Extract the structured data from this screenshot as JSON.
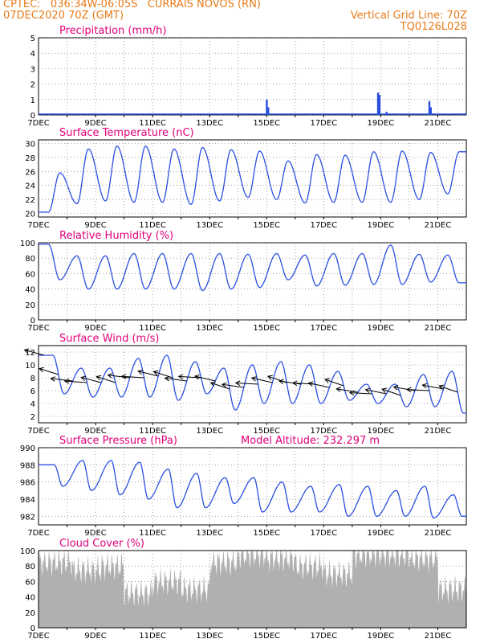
{
  "header": {
    "line1": "CPTEC:   036:34W-06:05S   CURRAIS NOVOS (RN)",
    "line2": "07DEC2020 70Z (GMT)",
    "right1": "Vertical Grid Line: 70Z",
    "right2": "TQ0126L028",
    "color": "#e87b1a"
  },
  "colors": {
    "title": "#e0007a",
    "series": "#2a4fe0",
    "cloud": "#b0b0b0",
    "grid": "#666666"
  },
  "x_ticks": [
    "7DEC",
    "9DEC",
    "11DEC",
    "13DEC",
    "15DEC",
    "17DEC",
    "19DEC",
    "21DEC"
  ],
  "panels": [
    {
      "id": "precip",
      "title": "Precipitation (mm/h)",
      "type": "bar",
      "ylim": [
        0,
        5
      ],
      "yticks": [
        0,
        1,
        2,
        3,
        4,
        5
      ],
      "title_extra": ""
    },
    {
      "id": "temp",
      "title": "Surface Temperature (nC)",
      "type": "line",
      "ylim": [
        19.5,
        30.5
      ],
      "yticks": [
        20,
        22,
        24,
        26,
        28,
        30
      ],
      "title_extra": ""
    },
    {
      "id": "rh",
      "title": "Relative Humidity (%)",
      "type": "line",
      "ylim": [
        0,
        100
      ],
      "yticks": [
        0,
        20,
        40,
        60,
        80,
        100
      ],
      "title_extra": ""
    },
    {
      "id": "wind",
      "title": "Surface Wind (m/s)",
      "type": "line+arrows",
      "ylim": [
        1,
        13
      ],
      "yticks": [
        2,
        4,
        6,
        8,
        10,
        12
      ],
      "title_extra": ""
    },
    {
      "id": "pres",
      "title": "Surface Pressure (hPa)",
      "type": "line",
      "ylim": [
        981,
        990
      ],
      "yticks": [
        982,
        984,
        986,
        988,
        990
      ],
      "title_extra": "Model Altitude: 232.297 m"
    },
    {
      "id": "cloud",
      "title": "Cloud Cover (%)",
      "type": "area",
      "ylim": [
        0,
        100
      ],
      "yticks": [
        0,
        20,
        40,
        60,
        80,
        100
      ],
      "title_extra": ""
    }
  ],
  "chart_data": [
    {
      "type": "bar",
      "title": "Precipitation (mm/h)",
      "ylim": [
        0,
        5
      ],
      "x_unit": "days since 7DEC 00Z",
      "bars": [
        {
          "x": 8.0,
          "y": 1.0
        },
        {
          "x": 8.05,
          "y": 0.5
        },
        {
          "x": 11.9,
          "y": 1.45
        },
        {
          "x": 11.95,
          "y": 1.3
        },
        {
          "x": 12.2,
          "y": 0.2
        },
        {
          "x": 13.7,
          "y": 0.9
        },
        {
          "x": 13.75,
          "y": 0.5
        }
      ]
    },
    {
      "type": "line",
      "title": "Surface Temperature (nC)",
      "ylim": [
        19.5,
        30.5
      ],
      "x_unit": "days since 7DEC 00Z",
      "daily_max": [
        25.8,
        29.2,
        29.6,
        29.6,
        29.2,
        29.4,
        29.1,
        28.9,
        27.5,
        28.4,
        28.3,
        28.8,
        28.9,
        28.7,
        28.8
      ],
      "daily_min": [
        20.2,
        21.4,
        21.8,
        21.6,
        21.6,
        21.3,
        21.8,
        22.3,
        22.0,
        21.5,
        21.6,
        21.6,
        21.6,
        22.0,
        22.8
      ]
    },
    {
      "type": "line",
      "title": "Relative Humidity (%)",
      "ylim": [
        0,
        100
      ],
      "x_unit": "days since 7DEC 00Z",
      "daily_max": [
        98,
        83,
        83,
        86,
        86,
        86,
        86,
        85,
        86,
        84,
        86,
        86,
        97,
        85,
        84
      ],
      "daily_min": [
        52,
        40,
        40,
        40,
        40,
        38,
        40,
        42,
        52,
        44,
        45,
        46,
        46,
        49,
        48
      ]
    },
    {
      "type": "line",
      "title": "Surface Wind (m/s)",
      "ylim": [
        1,
        13
      ],
      "x_unit": "days since 7DEC 00Z",
      "daily_max": [
        11.5,
        9.5,
        9.5,
        11.0,
        11.5,
        10.5,
        9.5,
        10.0,
        10.5,
        10.0,
        9.0,
        7.0,
        7.0,
        8.5,
        9.0
      ],
      "daily_min": [
        5.5,
        5.0,
        5.0,
        5.0,
        4.5,
        5.5,
        3.0,
        4.0,
        4.0,
        4.0,
        4.5,
        4.0,
        3.5,
        3.5,
        2.5
      ],
      "arrow_note": "wind direction vectors"
    },
    {
      "type": "line",
      "title": "Surface Pressure (hPa)",
      "ylim": [
        981,
        990
      ],
      "x_unit": "days since 7DEC 00Z",
      "daily_max": [
        988.0,
        988.5,
        988.5,
        988.3,
        987.5,
        987.0,
        986.5,
        986.5,
        986.0,
        985.5,
        985.7,
        985.5,
        985.0,
        985.5,
        984.5
      ],
      "daily_min": [
        985.5,
        985.0,
        984.5,
        984.0,
        983.0,
        983.0,
        983.5,
        982.5,
        982.5,
        982.5,
        982.0,
        982.0,
        982.0,
        981.8,
        982.0
      ]
    },
    {
      "type": "area",
      "title": "Cloud Cover (%)",
      "ylim": [
        0,
        100
      ],
      "x_unit": "days since 7DEC 00Z",
      "segments": [
        {
          "from": 0.0,
          "to": 1.2,
          "level": 85
        },
        {
          "from": 1.2,
          "to": 2.2,
          "level": 75
        },
        {
          "from": 2.2,
          "to": 3.0,
          "level": 80
        },
        {
          "from": 3.0,
          "to": 4.0,
          "level": 45
        },
        {
          "from": 4.0,
          "to": 5.0,
          "level": 60
        },
        {
          "from": 5.0,
          "to": 6.0,
          "level": 50
        },
        {
          "from": 6.0,
          "to": 7.0,
          "level": 85
        },
        {
          "from": 7.0,
          "to": 8.0,
          "level": 95
        },
        {
          "from": 8.0,
          "to": 9.0,
          "level": 90
        },
        {
          "from": 9.0,
          "to": 10.0,
          "level": 80
        },
        {
          "from": 10.0,
          "to": 11.0,
          "level": 70
        },
        {
          "from": 11.0,
          "to": 12.0,
          "level": 95
        },
        {
          "from": 12.0,
          "to": 13.0,
          "level": 95
        },
        {
          "from": 13.0,
          "to": 14.0,
          "level": 90
        },
        {
          "from": 14.0,
          "to": 15.0,
          "level": 50
        }
      ]
    }
  ]
}
